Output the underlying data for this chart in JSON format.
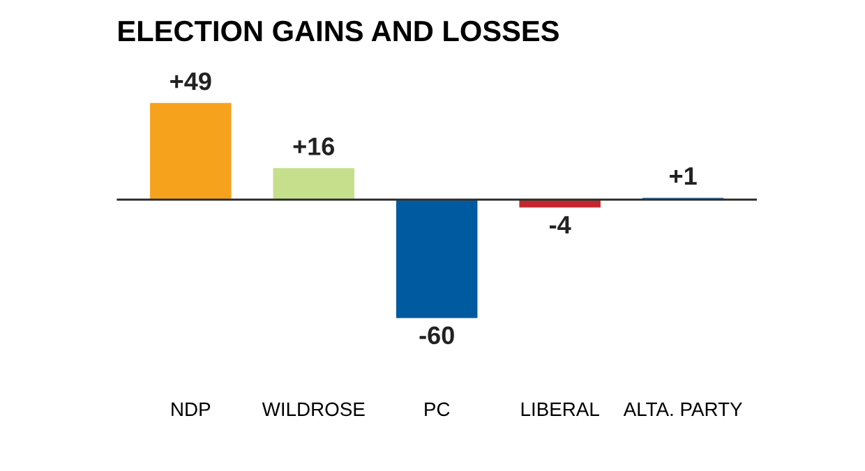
{
  "chart_data": {
    "type": "bar",
    "title": "ELECTION GAINS AND LOSSES",
    "categories": [
      "NDP",
      "WILDROSE",
      "PC",
      "LIBERAL",
      "ALTA. PARTY"
    ],
    "values": [
      49,
      16,
      -60,
      -4,
      1
    ],
    "colors": [
      "#f7a21d",
      "#c6df8c",
      "#005aa0",
      "#c3262d",
      "#3d86c6"
    ],
    "value_labels": [
      "+49",
      "+16",
      "-60",
      "-4",
      "+1"
    ],
    "grid": false,
    "legend": false
  }
}
